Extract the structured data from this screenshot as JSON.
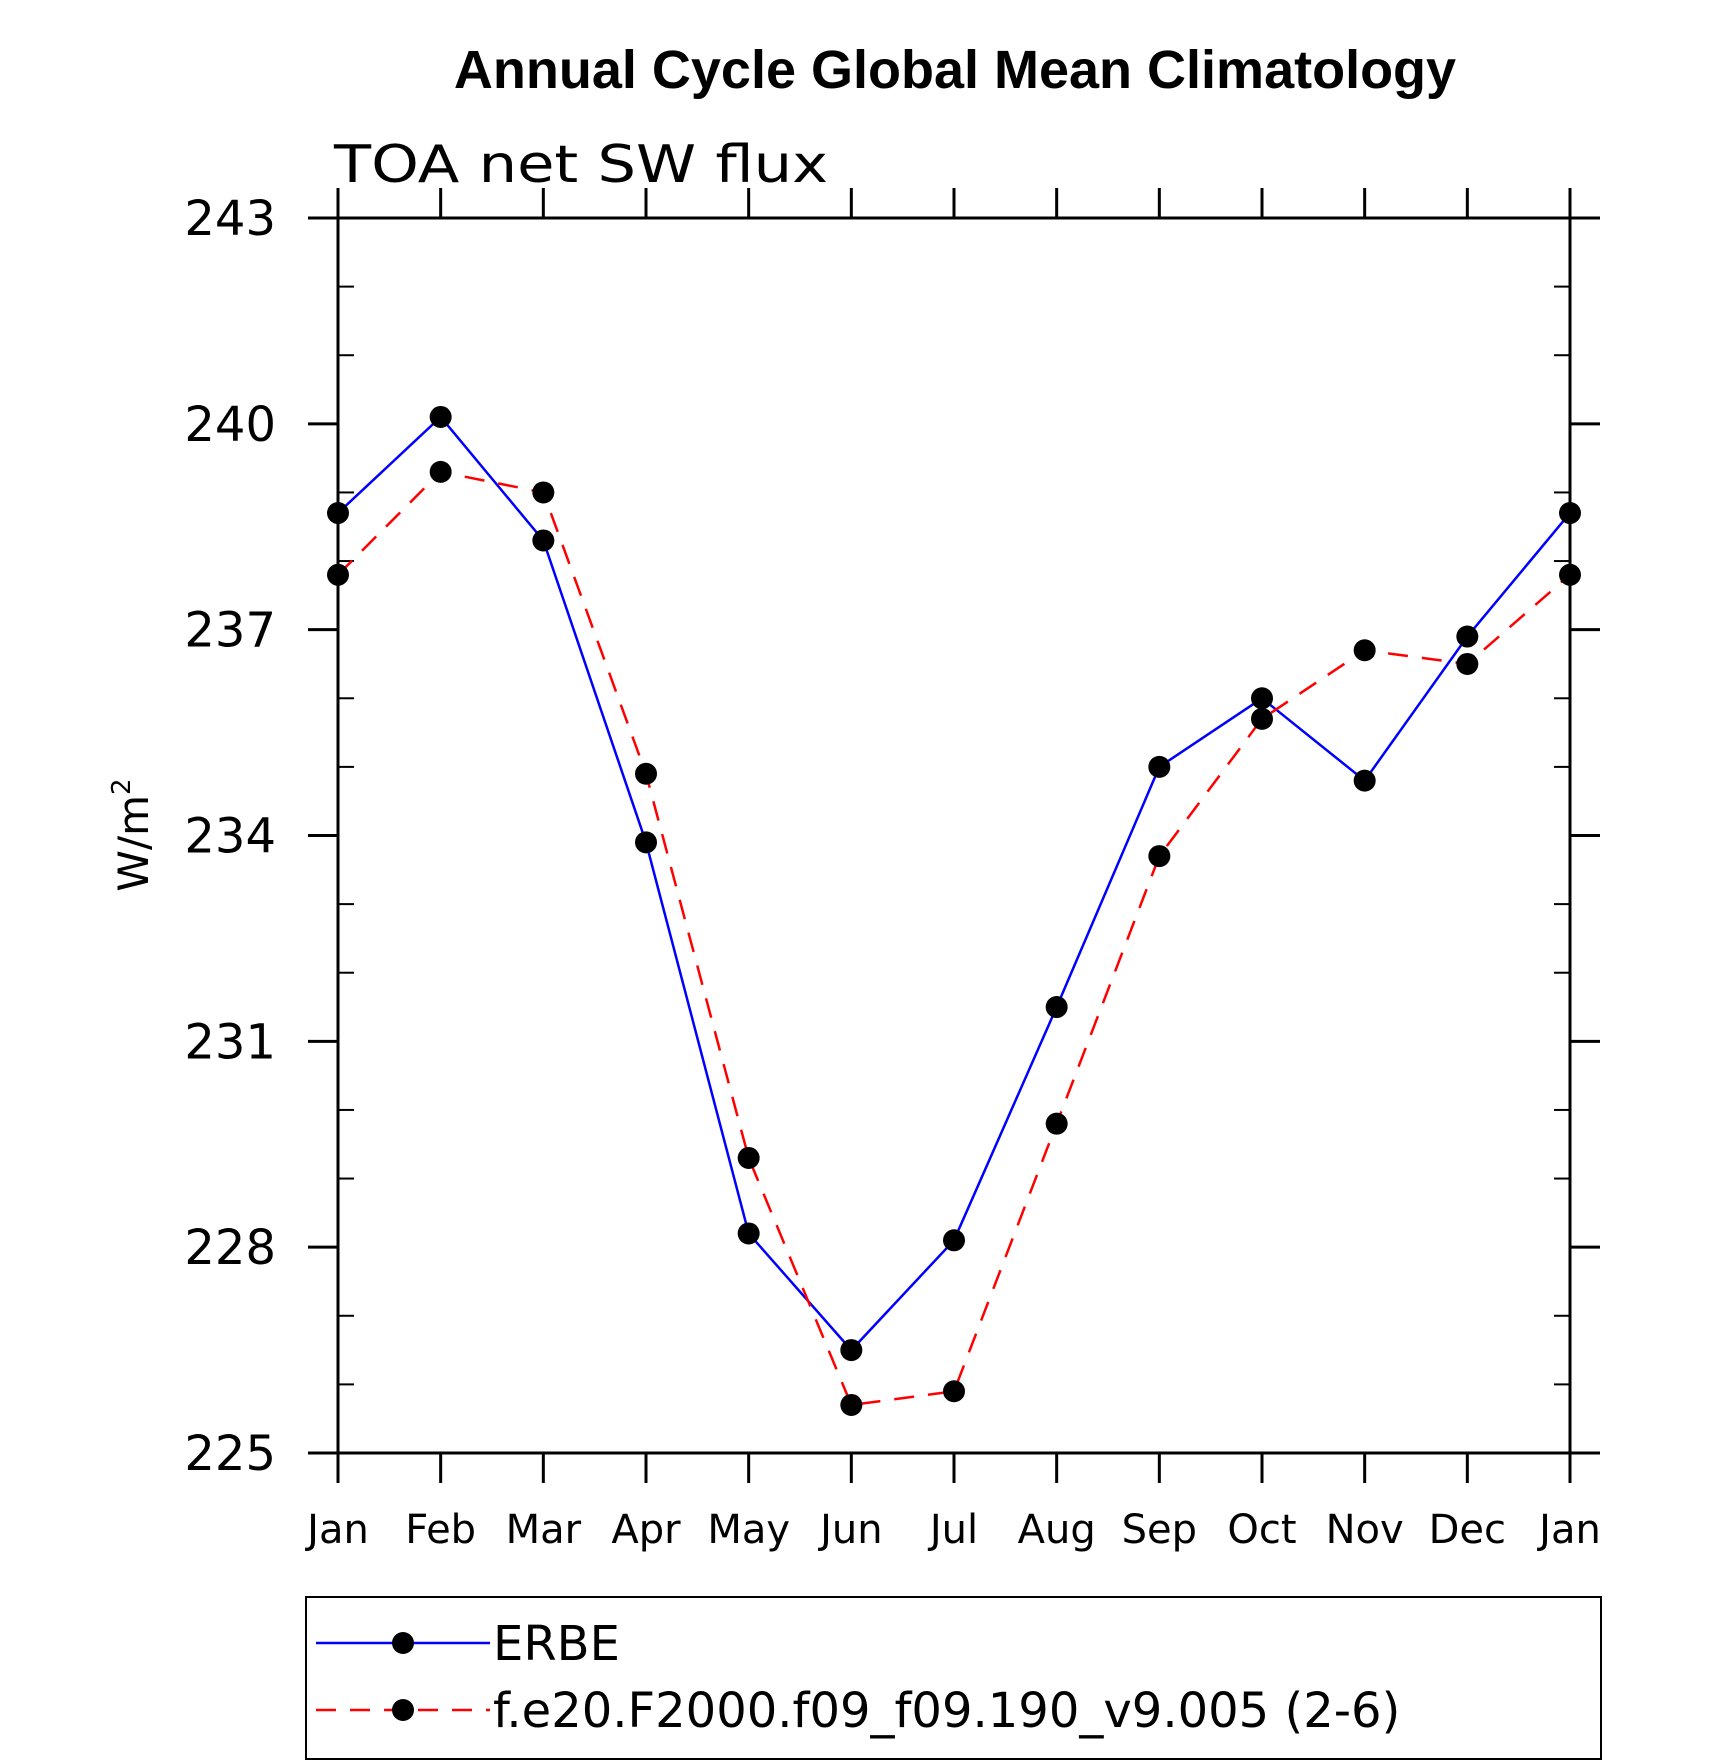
{
  "chart_data": {
    "type": "line",
    "title": "Annual Cycle Global Mean Climatology",
    "subtitle": "TOA net SW flux",
    "ylabel": "W/m",
    "ylabel_superscript": "2",
    "xlabel": "",
    "categories": [
      "Jan",
      "Feb",
      "Mar",
      "Apr",
      "May",
      "Jun",
      "Jul",
      "Aug",
      "Sep",
      "Oct",
      "Nov",
      "Dec",
      "Jan"
    ],
    "ylim": [
      225,
      243
    ],
    "yticks": [
      225,
      228,
      231,
      234,
      237,
      240,
      243
    ],
    "ytick_labels": [
      "225",
      "228",
      "231",
      "234",
      "237",
      "240",
      "243"
    ],
    "grid": false,
    "legend_position": "bottom",
    "series": [
      {
        "name": "ERBE",
        "color": "#0000ff",
        "line_style": "solid",
        "marker": "filled-circle",
        "values": [
          238.7,
          240.1,
          238.3,
          233.9,
          228.2,
          226.5,
          228.1,
          231.5,
          235.0,
          236.0,
          234.8,
          236.9,
          238.7
        ]
      },
      {
        "name": "f.e20.F2000.f09_f09.190_v9.005 (2-6)",
        "color": "#ff0000",
        "line_style": "dashed",
        "marker": "filled-circle",
        "values": [
          237.8,
          239.3,
          239.0,
          234.9,
          229.3,
          225.7,
          225.9,
          229.8,
          233.7,
          235.7,
          236.7,
          236.5,
          237.8
        ]
      }
    ]
  }
}
